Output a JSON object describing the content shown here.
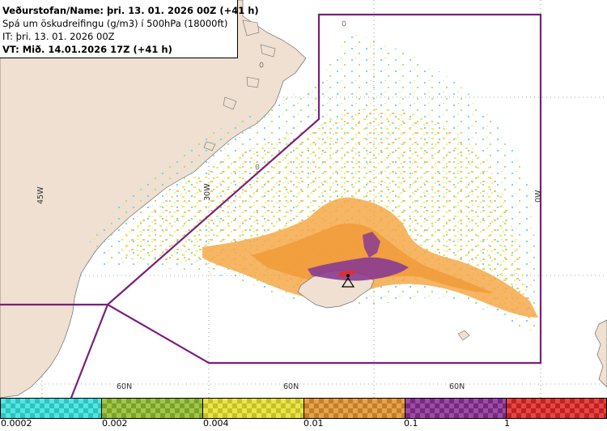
{
  "header": {
    "line1": "Veðurstofan/Name: þri. 13. 01. 2026 00Z (+41 h)",
    "line2": "Spá um öskudreifingu (g/m3) í 500hPa (18000ft)",
    "line3": "IT: þri. 13. 01. 2026 00Z",
    "line4": "VT: Mið. 14.01.2026 17Z (+41 h)"
  },
  "map": {
    "lat_labels": [
      "60N",
      "60N",
      "60N"
    ],
    "lon_labels": [
      "45W",
      "30W",
      "0W"
    ],
    "colors": {
      "land": "#efe0d2",
      "coast": "#6b6b6b",
      "boundary": "#7b1f7a",
      "ash_lowest": "#41d4d1",
      "ash_low": "#9fc33d",
      "ash_mid": "#f2e55a",
      "ash_orange": "#f5a94a",
      "ash_purple": "#8a3b91",
      "ash_red": "#dd3030"
    },
    "volcano_marker": "triangle-volcano-icon"
  },
  "legend": {
    "bins": [
      {
        "from": "0.0002",
        "to": "0.002",
        "color": "#41d4d1"
      },
      {
        "from": "0.002",
        "to": "0.004",
        "color": "#8fb43a"
      },
      {
        "from": "0.004",
        "to": "0.01",
        "color": "#d9d33a"
      },
      {
        "from": "0.01",
        "to": "0.1",
        "color": "#d4913a"
      },
      {
        "from": "0.1",
        "to": "1",
        "color": "#8a3b91"
      },
      {
        "from": "1",
        "to": "",
        "color": "#d23434"
      }
    ],
    "labels": [
      "0.0002",
      "0.002",
      "0.004",
      "0.01",
      "0.1",
      "1"
    ]
  }
}
